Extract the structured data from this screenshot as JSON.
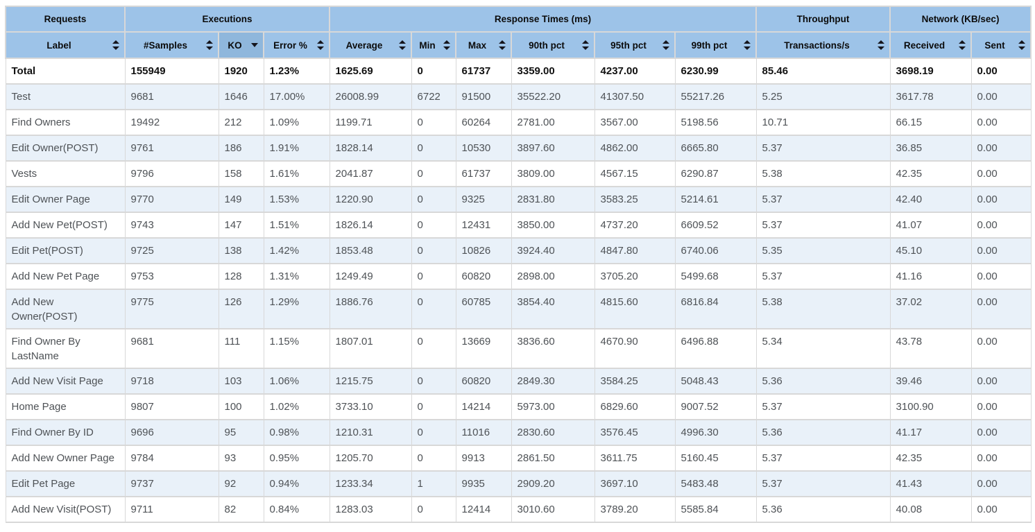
{
  "report": {
    "group_headers": [
      {
        "label": "Requests",
        "span": 1
      },
      {
        "label": "Executions",
        "span": 3
      },
      {
        "label": "Response Times (ms)",
        "span": 6
      },
      {
        "label": "Throughput",
        "span": 1
      },
      {
        "label": "Network (KB/sec)",
        "span": 2
      }
    ],
    "columns": [
      {
        "label": "Label",
        "sort": "both"
      },
      {
        "label": "#Samples",
        "sort": "both"
      },
      {
        "label": "KO",
        "sort": "desc"
      },
      {
        "label": "Error %",
        "sort": "both"
      },
      {
        "label": "Average",
        "sort": "both"
      },
      {
        "label": "Min",
        "sort": "both"
      },
      {
        "label": "Max",
        "sort": "both"
      },
      {
        "label": "90th pct",
        "sort": "both"
      },
      {
        "label": "95th pct",
        "sort": "both"
      },
      {
        "label": "99th pct",
        "sort": "both"
      },
      {
        "label": "Transactions/s",
        "sort": "both"
      },
      {
        "label": "Received",
        "sort": "both"
      },
      {
        "label": "Sent",
        "sort": "both"
      }
    ],
    "total_row": {
      "cells": [
        "Total",
        "155949",
        "1920",
        "1.23%",
        "1625.69",
        "0",
        "61737",
        "3359.00",
        "4237.00",
        "6230.99",
        "85.46",
        "3698.19",
        "0.00"
      ]
    },
    "rows": [
      {
        "cells": [
          "Test",
          "9681",
          "1646",
          "17.00%",
          "26008.99",
          "6722",
          "91500",
          "35522.20",
          "41307.50",
          "55217.26",
          "5.25",
          "3617.78",
          "0.00"
        ]
      },
      {
        "cells": [
          "Find Owners",
          "19492",
          "212",
          "1.09%",
          "1199.71",
          "0",
          "60264",
          "2781.00",
          "3567.00",
          "5198.56",
          "10.71",
          "66.15",
          "0.00"
        ]
      },
      {
        "cells": [
          "Edit Owner(POST)",
          "9761",
          "186",
          "1.91%",
          "1828.14",
          "0",
          "10530",
          "3897.60",
          "4862.00",
          "6665.80",
          "5.37",
          "36.85",
          "0.00"
        ]
      },
      {
        "cells": [
          "Vests",
          "9796",
          "158",
          "1.61%",
          "2041.87",
          "0",
          "61737",
          "3809.00",
          "4567.15",
          "6290.87",
          "5.38",
          "42.35",
          "0.00"
        ]
      },
      {
        "cells": [
          "Edit Owner Page",
          "9770",
          "149",
          "1.53%",
          "1220.90",
          "0",
          "9325",
          "2831.80",
          "3583.25",
          "5214.61",
          "5.37",
          "42.40",
          "0.00"
        ]
      },
      {
        "cells": [
          "Add New Pet(POST)",
          "9743",
          "147",
          "1.51%",
          "1826.14",
          "0",
          "12431",
          "3850.00",
          "4737.20",
          "6609.52",
          "5.37",
          "41.07",
          "0.00"
        ]
      },
      {
        "cells": [
          "Edit Pet(POST)",
          "9725",
          "138",
          "1.42%",
          "1853.48",
          "0",
          "10826",
          "3924.40",
          "4847.80",
          "6740.06",
          "5.35",
          "45.10",
          "0.00"
        ]
      },
      {
        "cells": [
          "Add New Pet Page",
          "9753",
          "128",
          "1.31%",
          "1249.49",
          "0",
          "60820",
          "2898.00",
          "3705.20",
          "5499.68",
          "5.37",
          "41.16",
          "0.00"
        ]
      },
      {
        "cells": [
          "Add New Owner(POST)",
          "9775",
          "126",
          "1.29%",
          "1886.76",
          "0",
          "60785",
          "3854.40",
          "4815.60",
          "6816.84",
          "5.38",
          "37.02",
          "0.00"
        ]
      },
      {
        "cells": [
          "Find Owner By LastName",
          "9681",
          "111",
          "1.15%",
          "1807.01",
          "0",
          "13669",
          "3836.60",
          "4670.90",
          "6496.88",
          "5.34",
          "43.78",
          "0.00"
        ]
      },
      {
        "cells": [
          "Add New Visit Page",
          "9718",
          "103",
          "1.06%",
          "1215.75",
          "0",
          "60820",
          "2849.30",
          "3584.25",
          "5048.43",
          "5.36",
          "39.46",
          "0.00"
        ]
      },
      {
        "cells": [
          "Home Page",
          "9807",
          "100",
          "1.02%",
          "3733.10",
          "0",
          "14214",
          "5973.00",
          "6829.60",
          "9007.52",
          "5.37",
          "3100.90",
          "0.00"
        ]
      },
      {
        "cells": [
          "Find Owner By ID",
          "9696",
          "95",
          "0.98%",
          "1210.31",
          "0",
          "11016",
          "2830.60",
          "3576.45",
          "4996.30",
          "5.36",
          "41.17",
          "0.00"
        ]
      },
      {
        "cells": [
          "Add New Owner Page",
          "9784",
          "93",
          "0.95%",
          "1205.70",
          "0",
          "9913",
          "2861.50",
          "3611.75",
          "5160.45",
          "5.37",
          "42.35",
          "0.00"
        ]
      },
      {
        "cells": [
          "Edit Pet Page",
          "9737",
          "92",
          "0.94%",
          "1233.34",
          "1",
          "9935",
          "2909.20",
          "3697.10",
          "5483.48",
          "5.37",
          "41.43",
          "0.00"
        ]
      },
      {
        "cells": [
          "Add New Visit(POST)",
          "9711",
          "82",
          "0.84%",
          "1283.03",
          "0",
          "12414",
          "3010.60",
          "3789.20",
          "5585.84",
          "5.36",
          "40.08",
          "0.00"
        ]
      }
    ]
  },
  "icons": {
    "unsorted": "sort-both-icon",
    "sorted_descending": "sort-desc-icon"
  },
  "colors": {
    "header_bg": "#9dc3e8",
    "sorted_header_bg": "#8fb7dc",
    "stripe_bg": "#e9f1f9",
    "border": "#d8d8d8",
    "body_text": "#4e5256",
    "total_text": "#111111"
  }
}
